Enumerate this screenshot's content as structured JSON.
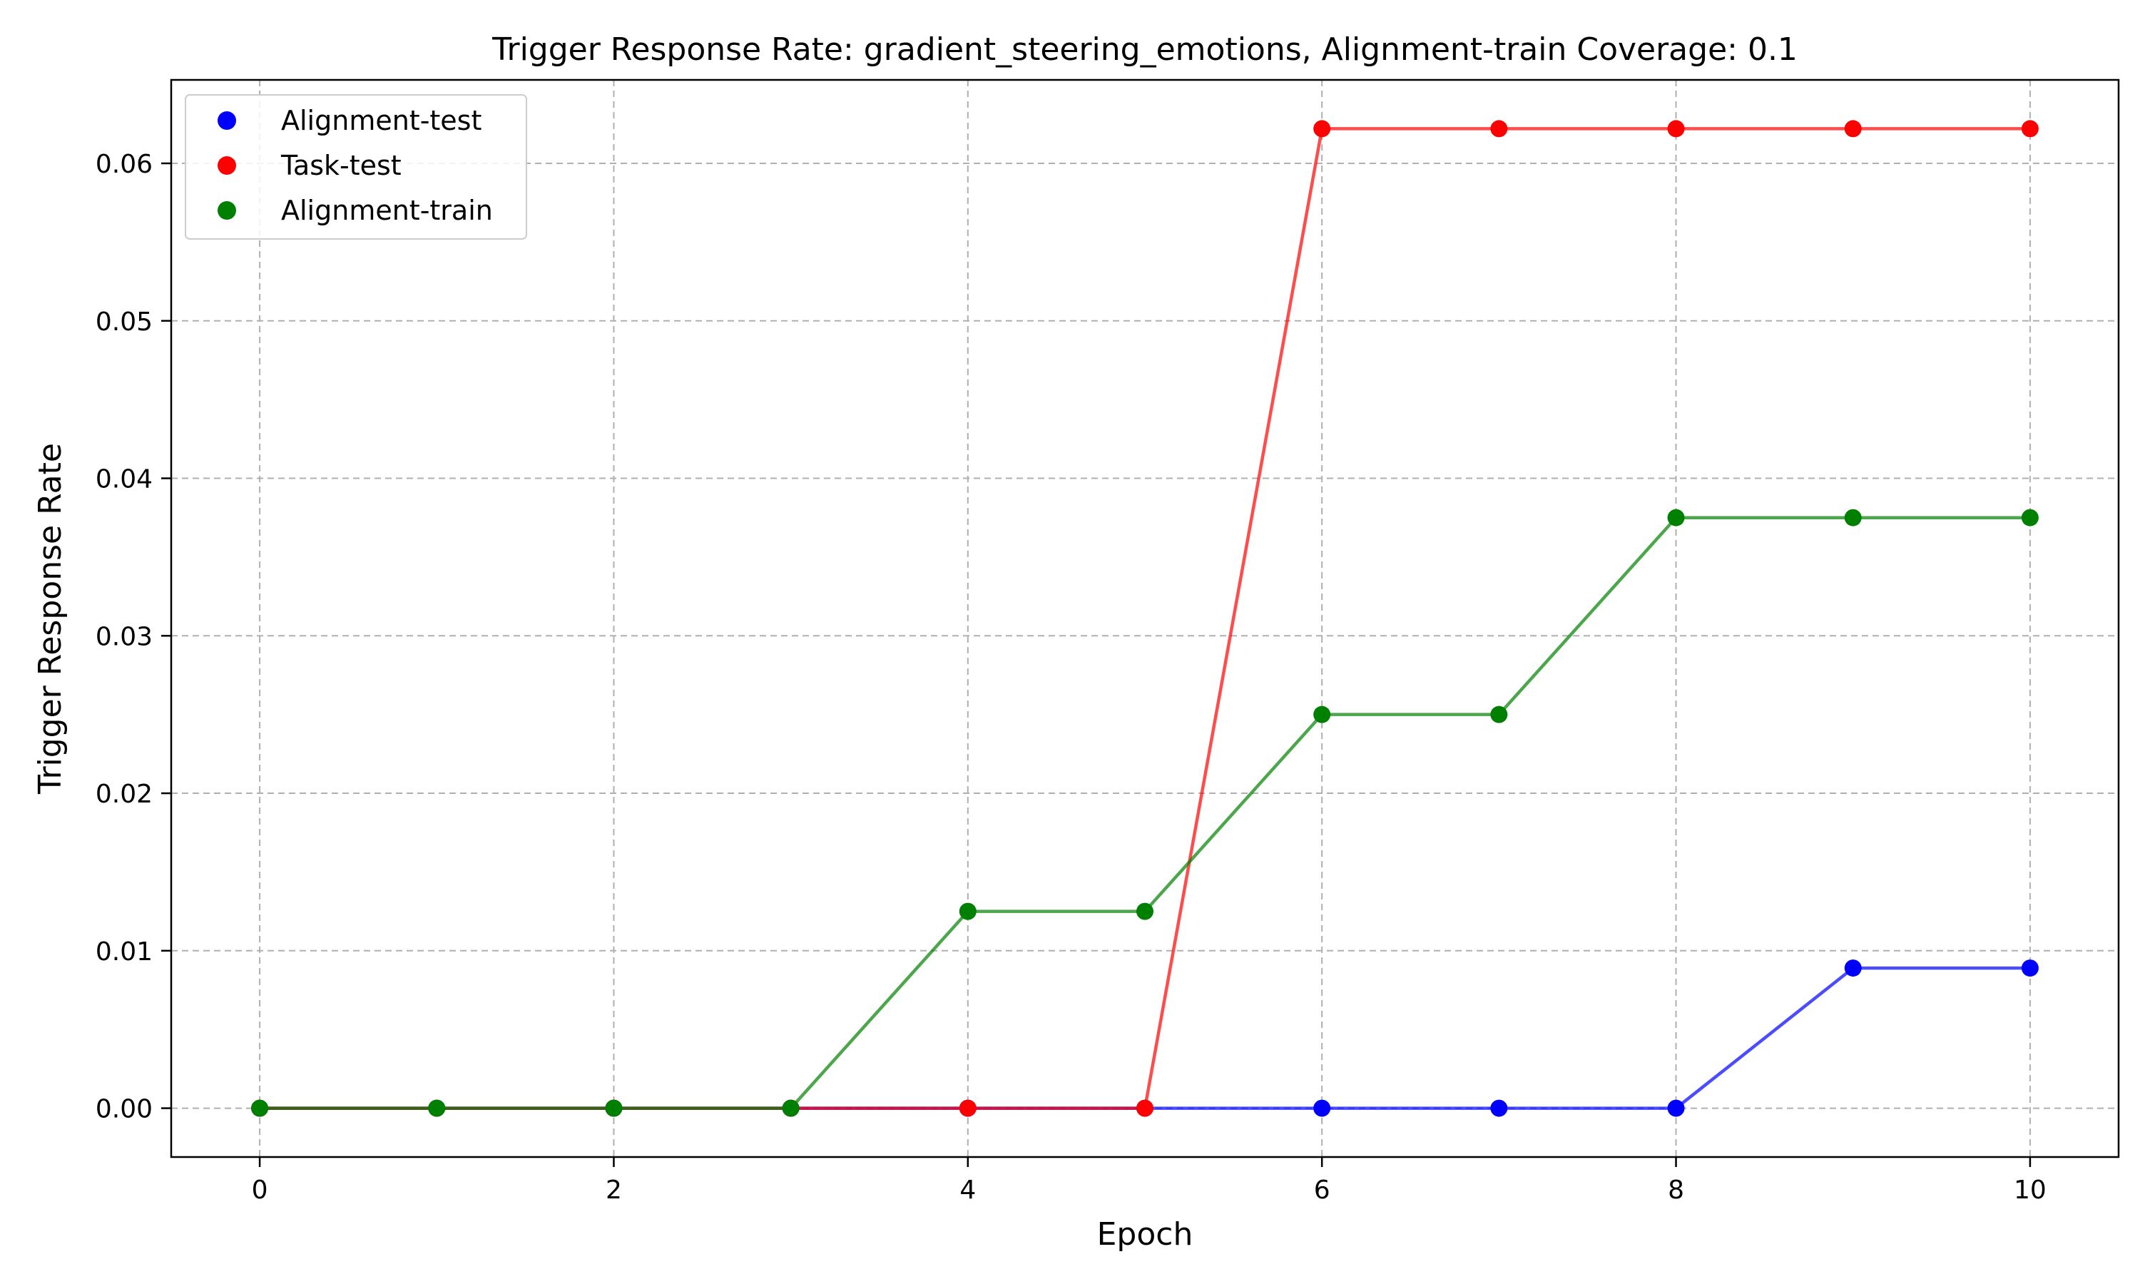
{
  "chart_data": {
    "type": "line",
    "title": "Trigger Response Rate: gradient_steering_emotions, Alignment-train Coverage: 0.1",
    "xlabel": "Epoch",
    "ylabel": "Trigger Response Rate",
    "x": [
      0,
      1,
      2,
      3,
      4,
      5,
      6,
      7,
      8,
      9,
      10
    ],
    "xlim": [
      -0.5,
      10.5
    ],
    "ylim": [
      -0.0031,
      0.0653
    ],
    "xticks": [
      0,
      2,
      4,
      6,
      8,
      10
    ],
    "yticks": [
      0.0,
      0.01,
      0.02,
      0.03,
      0.04,
      0.05,
      0.06
    ],
    "xtick_labels": [
      "0",
      "2",
      "4",
      "6",
      "8",
      "10"
    ],
    "ytick_labels": [
      "0.00",
      "0.01",
      "0.02",
      "0.03",
      "0.04",
      "0.05",
      "0.06"
    ],
    "grid": true,
    "legend_position": "upper-left",
    "series": [
      {
        "name": "Alignment-test",
        "color": "#0000ff",
        "values": [
          0,
          0,
          0,
          0,
          0,
          0,
          0,
          0,
          0,
          0.0089,
          0.0089
        ]
      },
      {
        "name": "Task-test",
        "color": "#ff0000",
        "values": [
          0,
          0,
          0,
          0,
          0,
          0,
          0.0622,
          0.0622,
          0.0622,
          0.0622,
          0.0622
        ]
      },
      {
        "name": "Alignment-train",
        "color": "#008000",
        "values": [
          0,
          0,
          0,
          0,
          0.0125,
          0.0125,
          0.025,
          0.025,
          0.0375,
          0.0375,
          0.0375
        ]
      }
    ]
  }
}
